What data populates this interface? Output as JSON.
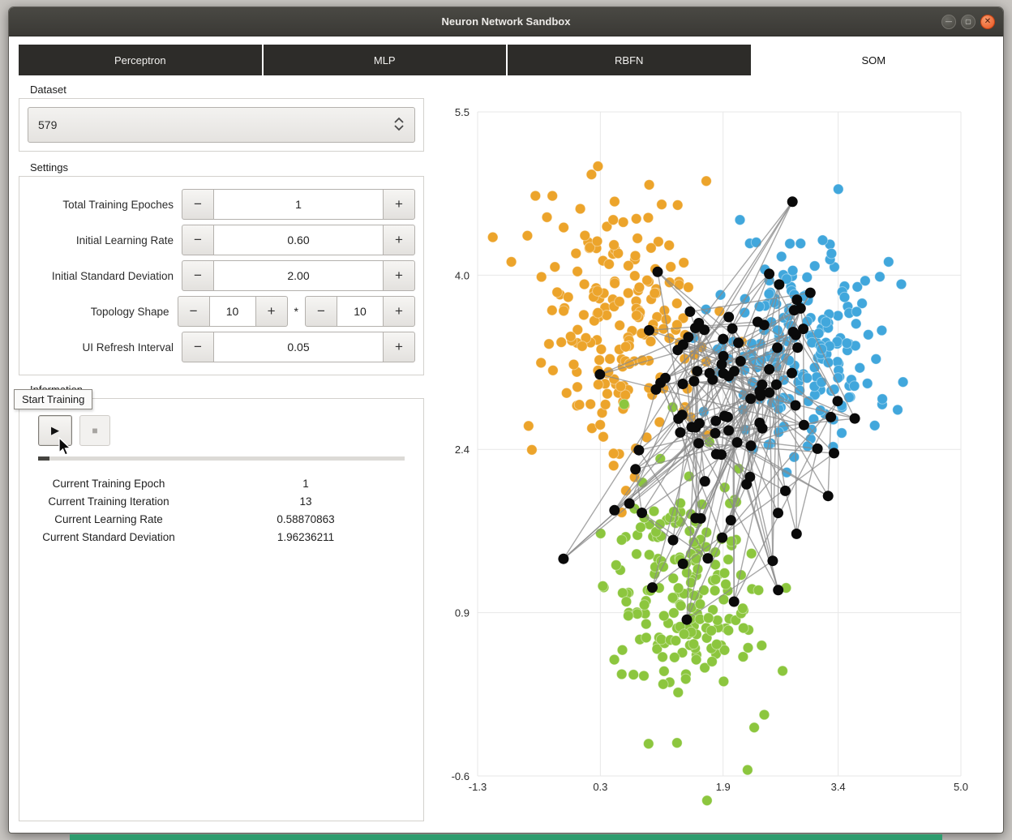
{
  "window": {
    "title": "Neuron Network Sandbox",
    "controls": [
      {
        "name": "minimize",
        "glyph": "—"
      },
      {
        "name": "maximize",
        "glyph": "▢"
      },
      {
        "name": "close",
        "glyph": "✕"
      }
    ]
  },
  "tabs": [
    {
      "label": "Perceptron",
      "active": false
    },
    {
      "label": "MLP",
      "active": false
    },
    {
      "label": "RBFN",
      "active": false
    },
    {
      "label": "SOM",
      "active": true
    }
  ],
  "dataset": {
    "section_label": "Dataset",
    "selected_value": "579"
  },
  "settings": {
    "section_label": "Settings",
    "rows": [
      {
        "label": "Total Training Epoches",
        "value": "1"
      },
      {
        "label": "Initial Learning Rate",
        "value": "0.60"
      },
      {
        "label": "Initial Standard Deviation",
        "value": "2.00"
      },
      {
        "label": "Topology Shape",
        "value_a": "10",
        "separator": "*",
        "value_b": "10"
      },
      {
        "label": "UI Refresh Interval",
        "value": "0.05"
      }
    ]
  },
  "information": {
    "section_label": "Information",
    "tooltip": "Start Training",
    "progress_percent": 3,
    "stats": [
      {
        "label": "Current Training Epoch",
        "value": "1"
      },
      {
        "label": "Current Training Iteration",
        "value": "13"
      },
      {
        "label": "Current Learning Rate",
        "value": "0.58870863"
      },
      {
        "label": "Current Standard Deviation",
        "value": "1.96236211"
      }
    ]
  },
  "icons": {
    "minus": "−",
    "plus": "+",
    "play": "▶",
    "stop": "■"
  },
  "chart_data": {
    "type": "scatter",
    "title": "",
    "xlabel": "",
    "ylabel": "",
    "xlim": [
      -1.3,
      5.0
    ],
    "ylim": [
      -0.6,
      5.5
    ],
    "x_ticks": [
      -1.3,
      0.3,
      1.9,
      3.4,
      5.0
    ],
    "y_ticks": [
      5.5,
      4.0,
      2.4,
      0.9,
      -0.6
    ],
    "grid": true,
    "point_radius": 6.3,
    "seed": 20,
    "series": [
      {
        "name": "cluster-orange",
        "color": "#ECA42B",
        "count": 195,
        "center": [
          0.55,
          3.55
        ],
        "std": [
          0.52,
          0.62
        ]
      },
      {
        "name": "cluster-blue",
        "color": "#41A7DC",
        "count": 195,
        "center": [
          3.0,
          3.35
        ],
        "std": [
          0.55,
          0.45
        ]
      },
      {
        "name": "cluster-green",
        "color": "#8CC63E",
        "count": 195,
        "center": [
          1.45,
          1.05
        ],
        "std": [
          0.5,
          0.55
        ]
      }
    ],
    "som": {
      "name": "som-topology",
      "node_color": "#0a0a0a",
      "node_radius": 6.5,
      "edge_color": "#8a8a8a",
      "edge_width": 1.4,
      "grid_rows": 10,
      "grid_cols": 10,
      "seed": 77,
      "mixture": [
        {
          "weight": 0.75,
          "center": [
            2.05,
            3.0
          ],
          "std": [
            0.72,
            0.48
          ]
        },
        {
          "weight": 0.2,
          "center": [
            1.6,
            1.55
          ],
          "std": [
            0.6,
            0.55
          ]
        },
        {
          "weight": 0.05,
          "center": [
            1.9,
            2.5
          ],
          "std": [
            1.5,
            1.4
          ]
        }
      ]
    }
  }
}
